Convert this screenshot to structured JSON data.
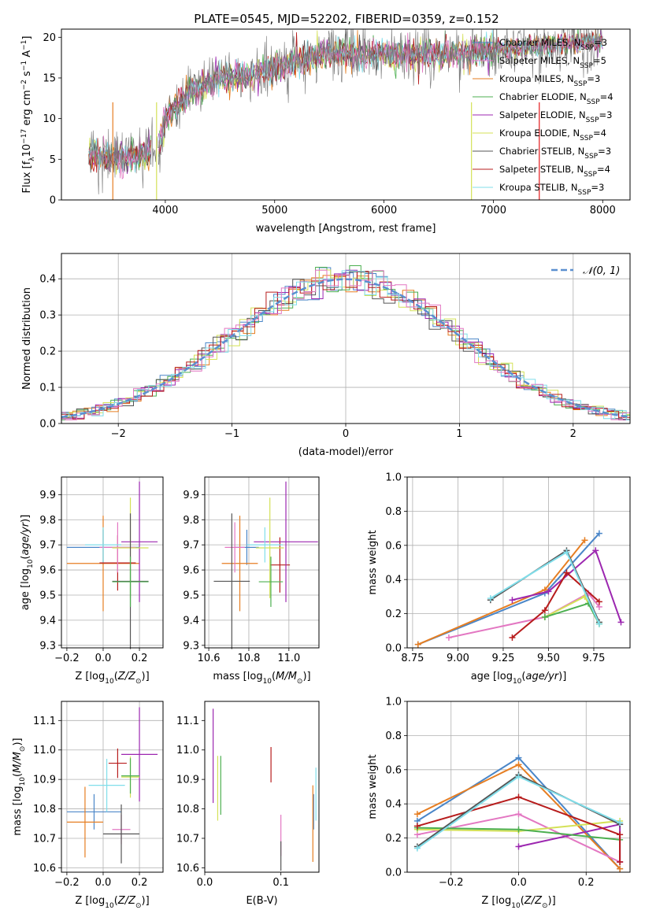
{
  "colors": [
    "#e41a1c",
    "#4a86c8",
    "#e67e22",
    "#4caf50",
    "#9c27b0",
    "#d4e157",
    "#555555",
    "#b71c1c",
    "#80deea",
    "#e377c2"
  ],
  "chart_data": [
    {
      "type": "line",
      "title": "PLATE=0545, MJD=52202, FIBERID=0359, z=0.152",
      "xlabel": "wavelength [Angstrom, rest frame]",
      "ylabel": "Flux [f_λ 10^-17 erg cm^-2 s^-1 A^-1]",
      "xlim": [
        3050,
        8250
      ],
      "ylim": [
        0,
        21
      ],
      "xticks": [
        "4000",
        "5000",
        "6000",
        "7000",
        "8000"
      ],
      "yticks": [
        "0",
        "5",
        "10",
        "15",
        "20"
      ],
      "grid": false,
      "legend": [
        "Chabrier MILES, N_SSP=3",
        "Salpeter MILES, N_SSP=5",
        "Kroupa MILES, N_SSP=3",
        "Chabrier ELODIE, N_SSP=4",
        "Salpeter ELODIE, N_SSP=3",
        "Kroupa ELODIE, N_SSP=4",
        "Chabrier STELIB, N_SSP=3",
        "Salpeter STELIB, N_SSP=4",
        "Kroupa STELIB, N_SSP=3"
      ],
      "legend_position": "top-right",
      "continuum_knots": {
        "x": [
          3300,
          3500,
          3800,
          3950,
          4000,
          4200,
          4500,
          4800,
          5000,
          5200,
          5500,
          6000,
          6500,
          7000,
          7500,
          8000
        ],
        "y": [
          6.0,
          5.0,
          5.5,
          7.0,
          10.0,
          13.0,
          15.0,
          15.5,
          16.2,
          17.0,
          18.0,
          18.0,
          17.8,
          18.5,
          19.0,
          19.5
        ]
      }
    },
    {
      "type": "line",
      "xlabel": "(data-model)/error",
      "ylabel": "Normed distribution",
      "xlim": [
        -2.5,
        2.5
      ],
      "ylim": [
        0,
        0.47
      ],
      "xticks": [
        "−2",
        "−1",
        "0",
        "1",
        "2"
      ],
      "yticks": [
        "0.0",
        "0.1",
        "0.2",
        "0.3",
        "0.4"
      ],
      "grid": true,
      "legend": "𝒩(0, 1)",
      "legend_position": "top-right",
      "series_note": "nine step histograms of residuals plus Gaussian N(0,1) dashed curve"
    },
    {
      "type": "scatter",
      "xlabel": "Z [log10(Z/Z☉)]",
      "ylabel": "age  [log10(age/yr)]",
      "xlim": [
        -0.23,
        0.33
      ],
      "ylim": [
        9.29,
        9.97
      ],
      "xticks": [
        "−0.2",
        "0.0",
        "0.2"
      ],
      "yticks": [
        "9.3",
        "9.4",
        "9.5",
        "9.6",
        "9.7",
        "9.8",
        "9.9"
      ],
      "grid": true,
      "errorbars": [
        {
          "x": 0.0,
          "y": 9.69,
          "xerr": 0.2,
          "yerr": 0.07,
          "color": 1
        },
        {
          "x": 0.0,
          "y": 9.626,
          "xerr": 0.2,
          "yerr": 0.19,
          "color": 2
        },
        {
          "x": 0.08,
          "y": 9.628,
          "xerr": 0.1,
          "yerr": 0.11,
          "color": 7
        },
        {
          "x": 0.2,
          "y": 9.712,
          "xerr": 0.1,
          "yerr": 0.24,
          "color": 4
        },
        {
          "x": 0.08,
          "y": 9.69,
          "xerr": 0.1,
          "yerr": 0.1,
          "color": 9
        },
        {
          "x": 0.15,
          "y": 9.688,
          "xerr": 0.1,
          "yerr": 0.2,
          "color": 5
        },
        {
          "x": 0.15,
          "y": 9.555,
          "xerr": 0.1,
          "yerr": 0.27,
          "color": 6
        },
        {
          "x": 0.15,
          "y": 9.553,
          "xerr": 0.1,
          "yerr": 0.1,
          "color": 3
        },
        {
          "x": 0.0,
          "y": 9.7,
          "xerr": 0.1,
          "yerr": 0.07,
          "color": 8
        }
      ]
    },
    {
      "type": "scatter",
      "xlabel": "mass [log10(M/M☉)]",
      "xlim": [
        10.58,
        11.15
      ],
      "ylim": [
        9.29,
        9.97
      ],
      "xticks": [
        "10.6",
        "10.8",
        "11.0"
      ],
      "yticks": [
        "9.3",
        "9.4",
        "9.5",
        "9.6",
        "9.7",
        "9.8",
        "9.9"
      ],
      "grid": true,
      "errorbars": [
        {
          "x": 10.79,
          "y": 9.69,
          "xerr": 0.06,
          "yerr": 0.07,
          "color": 1
        },
        {
          "x": 10.755,
          "y": 9.626,
          "xerr": 0.09,
          "yerr": 0.19,
          "color": 2
        },
        {
          "x": 10.955,
          "y": 9.62,
          "xerr": 0.05,
          "yerr": 0.11,
          "color": 7
        },
        {
          "x": 10.985,
          "y": 9.712,
          "xerr": 0.16,
          "yerr": 0.24,
          "color": 4
        },
        {
          "x": 10.73,
          "y": 9.69,
          "xerr": 0.05,
          "yerr": 0.1,
          "color": 9
        },
        {
          "x": 10.905,
          "y": 9.688,
          "xerr": 0.07,
          "yerr": 0.2,
          "color": 5
        },
        {
          "x": 10.715,
          "y": 9.555,
          "xerr": 0.09,
          "yerr": 0.27,
          "color": 6
        },
        {
          "x": 10.91,
          "y": 9.553,
          "xerr": 0.06,
          "yerr": 0.1,
          "color": 3
        },
        {
          "x": 10.88,
          "y": 9.7,
          "xerr": 0.09,
          "yerr": 0.07,
          "color": 8
        }
      ]
    },
    {
      "type": "line",
      "xlabel": "age  [log10(age/yr)]",
      "ylabel": "mass weight",
      "xlim": [
        8.72,
        9.95
      ],
      "ylim": [
        0,
        1
      ],
      "xticks": [
        "8.75",
        "9.00",
        "9.25",
        "9.50",
        "9.75"
      ],
      "yticks": [
        "0.0",
        "0.2",
        "0.4",
        "0.6",
        "0.8",
        "1.0"
      ],
      "grid": true,
      "series": [
        {
          "color": 1,
          "x": [
            8.78,
            9.48,
            9.78
          ],
          "y": [
            0.02,
            0.32,
            0.67
          ]
        },
        {
          "color": 2,
          "x": [
            8.78,
            9.48,
            9.7
          ],
          "y": [
            0.02,
            0.34,
            0.63
          ]
        },
        {
          "color": 9,
          "x": [
            8.95,
            9.48,
            9.72,
            9.78
          ],
          "y": [
            0.06,
            0.18,
            0.32,
            0.24
          ]
        },
        {
          "color": 4,
          "x": [
            9.3,
            9.5,
            9.76,
            9.9
          ],
          "y": [
            0.28,
            0.33,
            0.57,
            0.15
          ]
        },
        {
          "color": 5,
          "x": [
            9.48,
            9.7,
            9.78
          ],
          "y": [
            0.18,
            0.3,
            0.14
          ]
        },
        {
          "color": 3,
          "x": [
            9.48,
            9.72,
            9.78
          ],
          "y": [
            0.18,
            0.26,
            0.14
          ]
        },
        {
          "color": 7,
          "x": [
            9.3,
            9.48,
            9.6,
            9.78
          ],
          "y": [
            0.06,
            0.22,
            0.44,
            0.27
          ]
        },
        {
          "color": 6,
          "x": [
            9.18,
            9.6,
            9.78
          ],
          "y": [
            0.28,
            0.57,
            0.15
          ]
        },
        {
          "color": 8,
          "x": [
            9.18,
            9.6,
            9.78
          ],
          "y": [
            0.29,
            0.56,
            0.14
          ]
        }
      ]
    },
    {
      "type": "scatter",
      "xlabel": "Z [log10(Z/Z☉)]",
      "ylabel": "mass [log10(M/M☉)]",
      "xlim": [
        -0.23,
        0.33
      ],
      "ylim": [
        10.585,
        11.165
      ],
      "xticks": [
        "−0.2",
        "0.0",
        "0.2"
      ],
      "yticks": [
        "10.6",
        "10.7",
        "10.8",
        "10.9",
        "11.0",
        "11.1"
      ],
      "grid": true,
      "errorbars": [
        {
          "x": -0.05,
          "y": 10.79,
          "xerr": 0.15,
          "yerr": 0.06,
          "color": 1
        },
        {
          "x": -0.1,
          "y": 10.755,
          "xerr": 0.1,
          "yerr": 0.12,
          "color": 2
        },
        {
          "x": 0.08,
          "y": 10.955,
          "xerr": 0.05,
          "yerr": 0.05,
          "color": 7
        },
        {
          "x": 0.2,
          "y": 10.985,
          "xerr": 0.1,
          "yerr": 0.16,
          "color": 4
        },
        {
          "x": 0.1,
          "y": 10.73,
          "xerr": 0.05,
          "yerr": 0.05,
          "color": 9
        },
        {
          "x": 0.15,
          "y": 10.908,
          "xerr": 0.05,
          "yerr": 0.07,
          "color": 5
        },
        {
          "x": 0.1,
          "y": 10.715,
          "xerr": 0.1,
          "yerr": 0.1,
          "color": 6
        },
        {
          "x": 0.15,
          "y": 10.912,
          "xerr": 0.05,
          "yerr": 0.06,
          "color": 3
        },
        {
          "x": 0.02,
          "y": 10.88,
          "xerr": 0.1,
          "yerr": 0.09,
          "color": 8
        }
      ]
    },
    {
      "type": "scatter",
      "xlabel": "E(B-V)",
      "xlim": [
        0,
        0.15
      ],
      "ylim": [
        10.585,
        11.165
      ],
      "xticks": [
        "0.0",
        "0.1"
      ],
      "yticks": [
        "10.6",
        "10.7",
        "10.8",
        "10.9",
        "11.0",
        "11.1"
      ],
      "grid": false,
      "errorbars": [
        {
          "x": 0.143,
          "y": 10.79,
          "yerr": 0.06,
          "color": 1
        },
        {
          "x": 0.142,
          "y": 10.75,
          "yerr": 0.13,
          "color": 2
        },
        {
          "x": 0.087,
          "y": 10.95,
          "yerr": 0.06,
          "color": 7
        },
        {
          "x": 0.011,
          "y": 10.98,
          "yerr": 0.16,
          "color": 4
        },
        {
          "x": 0.1,
          "y": 10.71,
          "yerr": 0.07,
          "color": 9
        },
        {
          "x": 0.017,
          "y": 10.87,
          "yerr": 0.11,
          "color": 5
        },
        {
          "x": 0.1,
          "y": 10.64,
          "yerr": 0.05,
          "color": 6
        },
        {
          "x": 0.021,
          "y": 10.88,
          "yerr": 0.1,
          "color": 3
        },
        {
          "x": 0.146,
          "y": 10.85,
          "yerr": 0.09,
          "color": 8
        }
      ]
    },
    {
      "type": "line",
      "xlabel": "Z [log10(Z/Z☉)]",
      "ylabel": "mass weight",
      "xlim": [
        -0.33,
        0.33
      ],
      "ylim": [
        0,
        1
      ],
      "xticks": [
        "−0.2",
        "0.0",
        "0.2"
      ],
      "yticks": [
        "0.0",
        "0.2",
        "0.4",
        "0.6",
        "0.8",
        "1.0"
      ],
      "grid": true,
      "series": [
        {
          "color": 1,
          "x": [
            -0.3,
            0.0,
            0.3
          ],
          "y": [
            0.3,
            0.67,
            0.02
          ]
        },
        {
          "color": 2,
          "x": [
            -0.3,
            0.0,
            0.3
          ],
          "y": [
            0.34,
            0.63,
            0.02
          ]
        },
        {
          "color": 9,
          "x": [
            -0.3,
            0.0,
            0.3
          ],
          "y": [
            0.22,
            0.34,
            0.06
          ]
        },
        {
          "color": 4,
          "x": [
            0.0,
            0.3,
            0.3
          ],
          "y": [
            0.15,
            0.28,
            0.06
          ]
        },
        {
          "color": 5,
          "x": [
            -0.3,
            0.0,
            0.3
          ],
          "y": [
            0.25,
            0.24,
            0.3
          ]
        },
        {
          "color": 3,
          "x": [
            -0.3,
            0.0,
            0.3
          ],
          "y": [
            0.26,
            0.25,
            0.19
          ]
        },
        {
          "color": 7,
          "x": [
            -0.3,
            0.0,
            0.3,
            0.3
          ],
          "y": [
            0.27,
            0.44,
            0.22,
            0.06
          ]
        },
        {
          "color": 6,
          "x": [
            -0.3,
            0.0,
            0.3
          ],
          "y": [
            0.15,
            0.57,
            0.28
          ]
        },
        {
          "color": 8,
          "x": [
            -0.3,
            0.0,
            0.3
          ],
          "y": [
            0.14,
            0.56,
            0.29
          ]
        }
      ]
    }
  ]
}
